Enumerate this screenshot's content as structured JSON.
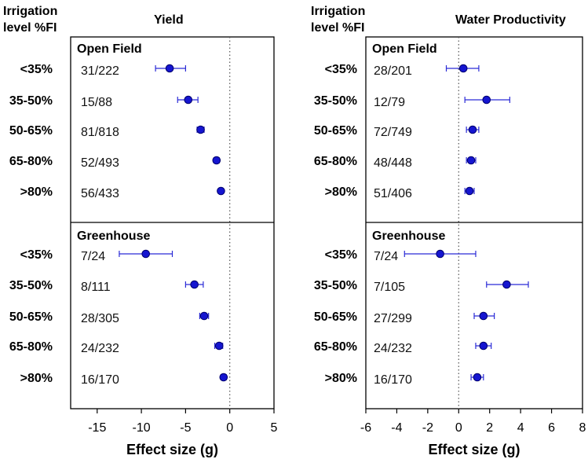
{
  "chart_data": [
    {
      "type": "scatter",
      "subtype": "forest-plot",
      "title": "Yield",
      "header": "Irrigation level %FI",
      "xlabel": "Effect size (g)",
      "xlim": [
        -18,
        5
      ],
      "xticks": [
        -15,
        -10,
        -5,
        0,
        5
      ],
      "reference_line": 0,
      "categories": [
        "<35%",
        "35-50%",
        "50-65%",
        "65-80%",
        ">80%"
      ],
      "sections": [
        {
          "name": "Open Field",
          "rows": [
            {
              "label": "<35%",
              "annotation": "31/222",
              "mean": -6.8,
              "ci": [
                -8.4,
                -5.0
              ]
            },
            {
              "label": "35-50%",
              "annotation": "15/88",
              "mean": -4.7,
              "ci": [
                -5.9,
                -3.6
              ]
            },
            {
              "label": "50-65%",
              "annotation": "81/818",
              "mean": -3.3,
              "ci": [
                -3.7,
                -2.9
              ]
            },
            {
              "label": "65-80%",
              "annotation": "52/493",
              "mean": -1.5,
              "ci": [
                -1.8,
                -1.2
              ]
            },
            {
              "label": ">80%",
              "annotation": "56/433",
              "mean": -1.0,
              "ci": [
                -1.2,
                -0.8
              ]
            }
          ]
        },
        {
          "name": "Greenhouse",
          "rows": [
            {
              "label": "<35%",
              "annotation": "7/24",
              "mean": -9.5,
              "ci": [
                -12.5,
                -6.5
              ]
            },
            {
              "label": "35-50%",
              "annotation": "8/111",
              "mean": -4.0,
              "ci": [
                -5.0,
                -3.0
              ]
            },
            {
              "label": "50-65%",
              "annotation": "28/305",
              "mean": -2.9,
              "ci": [
                -3.4,
                -2.4
              ]
            },
            {
              "label": "65-80%",
              "annotation": "24/232",
              "mean": -1.2,
              "ci": [
                -1.7,
                -0.8
              ]
            },
            {
              "label": ">80%",
              "annotation": "16/170",
              "mean": -0.7,
              "ci": [
                -1.0,
                -0.4
              ]
            }
          ]
        }
      ]
    },
    {
      "type": "scatter",
      "subtype": "forest-plot",
      "title": "Water Productivity",
      "header": "Irrigation level %FI",
      "xlabel": "Effect size (g)",
      "xlim": [
        -6,
        8
      ],
      "xticks": [
        -6,
        -4,
        -2,
        0,
        2,
        4,
        6,
        8
      ],
      "reference_line": 0,
      "categories": [
        "<35%",
        "35-50%",
        "50-65%",
        "65-80%",
        ">80%"
      ],
      "sections": [
        {
          "name": "Open Field",
          "rows": [
            {
              "label": "<35%",
              "annotation": "28/201",
              "mean": 0.3,
              "ci": [
                -0.8,
                1.3
              ]
            },
            {
              "label": "35-50%",
              "annotation": "12/79",
              "mean": 1.8,
              "ci": [
                0.4,
                3.3
              ]
            },
            {
              "label": "50-65%",
              "annotation": "72/749",
              "mean": 0.9,
              "ci": [
                0.5,
                1.3
              ]
            },
            {
              "label": "65-80%",
              "annotation": "48/448",
              "mean": 0.8,
              "ci": [
                0.5,
                1.1
              ]
            },
            {
              "label": ">80%",
              "annotation": "51/406",
              "mean": 0.7,
              "ci": [
                0.4,
                1.0
              ]
            }
          ]
        },
        {
          "name": "Greenhouse",
          "rows": [
            {
              "label": "<35%",
              "annotation": "7/24",
              "mean": -1.2,
              "ci": [
                -3.5,
                1.1
              ]
            },
            {
              "label": "35-50%",
              "annotation": "7/105",
              "mean": 3.1,
              "ci": [
                1.8,
                4.5
              ]
            },
            {
              "label": "50-65%",
              "annotation": "27/299",
              "mean": 1.6,
              "ci": [
                1.0,
                2.3
              ]
            },
            {
              "label": "65-80%",
              "annotation": "24/232",
              "mean": 1.6,
              "ci": [
                1.1,
                2.1
              ]
            },
            {
              "label": ">80%",
              "annotation": "16/170",
              "mean": 1.2,
              "ci": [
                0.8,
                1.6
              ]
            }
          ]
        }
      ]
    }
  ],
  "colors": {
    "marker": "#1515d0",
    "marker_edge": "#00006e",
    "whisker": "#2b2bd6",
    "frame": "#000000",
    "zero_line": "#555555"
  }
}
